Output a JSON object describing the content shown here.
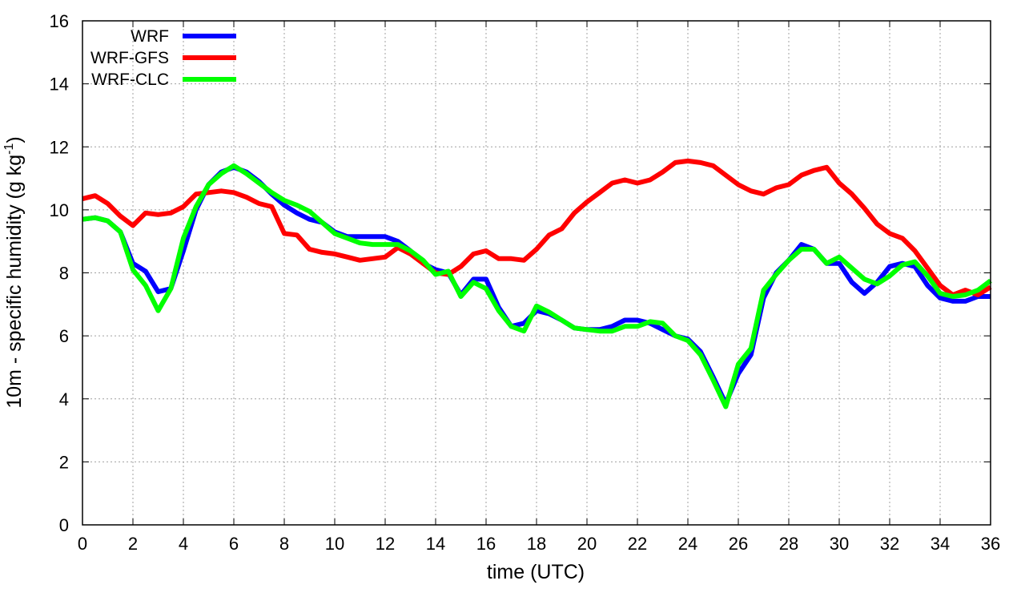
{
  "chart_data": {
    "type": "line",
    "title": "",
    "xlabel": "time (UTC)",
    "ylabel_main": "10m - specific humidity (g kg",
    "ylabel_sup": "-1",
    "ylabel_close": ")",
    "xlim": [
      0,
      36
    ],
    "ylim": [
      0,
      16
    ],
    "xticks": [
      0,
      2,
      4,
      6,
      8,
      10,
      12,
      14,
      16,
      18,
      20,
      22,
      24,
      26,
      28,
      30,
      32,
      34,
      36
    ],
    "yticks": [
      0,
      2,
      4,
      6,
      8,
      10,
      12,
      14,
      16
    ],
    "grid": true,
    "legend_position": "top-left",
    "x": [
      0,
      0.5,
      1,
      1.5,
      2,
      2.5,
      3,
      3.5,
      4,
      4.5,
      5,
      5.5,
      6,
      6.5,
      7,
      7.5,
      8,
      8.5,
      9,
      9.5,
      10,
      10.5,
      11,
      11.5,
      12,
      12.5,
      13,
      13.5,
      14,
      14.5,
      15,
      15.5,
      16,
      16.5,
      17,
      17.5,
      18,
      18.5,
      19,
      19.5,
      20,
      20.5,
      21,
      21.5,
      22,
      22.5,
      23,
      23.5,
      24,
      24.5,
      25,
      25.5,
      26,
      26.5,
      27,
      27.5,
      28,
      28.5,
      29,
      29.5,
      30,
      30.5,
      31,
      31.5,
      32,
      32.5,
      33,
      33.5,
      34,
      34.5,
      35,
      35.5,
      36
    ],
    "series": [
      {
        "name": "WRF",
        "color": "#0000ff",
        "values": [
          9.7,
          9.75,
          9.65,
          9.3,
          8.3,
          8.05,
          7.4,
          7.5,
          8.7,
          10.0,
          10.8,
          11.2,
          11.35,
          11.2,
          10.9,
          10.5,
          10.15,
          9.9,
          9.7,
          9.6,
          9.3,
          9.15,
          9.15,
          9.15,
          9.15,
          9.0,
          8.7,
          8.3,
          8.1,
          8.0,
          7.3,
          7.8,
          7.8,
          6.9,
          6.3,
          6.4,
          6.8,
          6.7,
          6.5,
          6.25,
          6.2,
          6.2,
          6.3,
          6.5,
          6.5,
          6.4,
          6.2,
          6.0,
          5.9,
          5.5,
          4.7,
          3.85,
          4.8,
          5.4,
          7.2,
          8.0,
          8.4,
          8.9,
          8.75,
          8.3,
          8.3,
          7.7,
          7.35,
          7.7,
          8.2,
          8.3,
          8.2,
          7.6,
          7.2,
          7.1,
          7.1,
          7.25,
          7.25
        ]
      },
      {
        "name": "WRF-GFS",
        "color": "#ff0000",
        "values": [
          10.35,
          10.45,
          10.2,
          9.8,
          9.5,
          9.9,
          9.85,
          9.9,
          10.1,
          10.5,
          10.55,
          10.6,
          10.55,
          10.4,
          10.2,
          10.1,
          9.25,
          9.2,
          8.75,
          8.65,
          8.6,
          8.5,
          8.4,
          8.45,
          8.5,
          8.8,
          8.6,
          8.3,
          8.0,
          7.95,
          8.2,
          8.6,
          8.7,
          8.45,
          8.45,
          8.4,
          8.75,
          9.2,
          9.4,
          9.9,
          10.25,
          10.55,
          10.85,
          10.95,
          10.85,
          10.95,
          11.2,
          11.5,
          11.55,
          11.5,
          11.4,
          11.1,
          10.8,
          10.6,
          10.5,
          10.7,
          10.8,
          11.1,
          11.25,
          11.35,
          10.85,
          10.5,
          10.05,
          9.55,
          9.25,
          9.1,
          8.7,
          8.15,
          7.6,
          7.3,
          7.45,
          7.3,
          7.55
        ]
      },
      {
        "name": "WRF-CLC",
        "color": "#00ff00",
        "values": [
          9.7,
          9.75,
          9.65,
          9.3,
          8.1,
          7.6,
          6.8,
          7.5,
          9.1,
          10.1,
          10.8,
          11.15,
          11.4,
          11.15,
          10.85,
          10.55,
          10.3,
          10.15,
          9.95,
          9.6,
          9.25,
          9.1,
          8.95,
          8.9,
          8.9,
          8.9,
          8.7,
          8.4,
          7.95,
          8.05,
          7.25,
          7.7,
          7.5,
          6.8,
          6.3,
          6.15,
          6.95,
          6.75,
          6.5,
          6.25,
          6.2,
          6.15,
          6.15,
          6.3,
          6.3,
          6.45,
          6.4,
          6.0,
          5.85,
          5.4,
          4.6,
          3.75,
          5.1,
          5.6,
          7.45,
          7.95,
          8.4,
          8.75,
          8.75,
          8.3,
          8.5,
          8.15,
          7.8,
          7.65,
          7.9,
          8.25,
          8.35,
          7.9,
          7.35,
          7.25,
          7.3,
          7.45,
          7.75
        ]
      }
    ]
  }
}
